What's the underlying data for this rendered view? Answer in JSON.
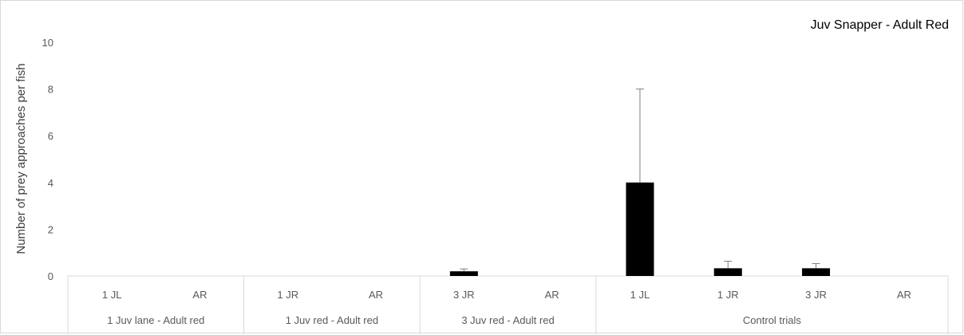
{
  "chart_data": {
    "type": "bar",
    "title": "Juv Snapper - Adult Red",
    "xlabel": "",
    "ylabel": "Number of prey approaches per fish",
    "ylim": [
      0,
      10
    ],
    "yticks": [
      0,
      2,
      4,
      6,
      8,
      10
    ],
    "grid": false,
    "legend": "none",
    "bar_color": "#000000",
    "groups": [
      {
        "label": "1 Juv lane - Adult red",
        "categories": [
          "1 JL",
          "AR"
        ]
      },
      {
        "label": "1 Juv red - Adult red",
        "categories": [
          "1 JR",
          "AR"
        ]
      },
      {
        "label": "3 Juv red - Adult red",
        "categories": [
          "3 JR",
          "AR"
        ]
      },
      {
        "label": "Control trials",
        "categories": [
          "1 JL",
          "1 JR",
          "3 JR",
          "AR"
        ]
      }
    ],
    "categories": [
      "1 JL",
      "AR",
      "1 JR",
      "AR",
      "3 JR",
      "AR",
      "1 JL",
      "1 JR",
      "3 JR",
      "AR"
    ],
    "values": [
      0,
      0,
      0,
      0,
      0.2,
      0,
      4.0,
      0.33,
      0.33,
      0
    ],
    "error_plus": [
      0,
      0,
      0,
      0,
      0.1,
      0,
      4.0,
      0.3,
      0.2,
      0
    ]
  }
}
